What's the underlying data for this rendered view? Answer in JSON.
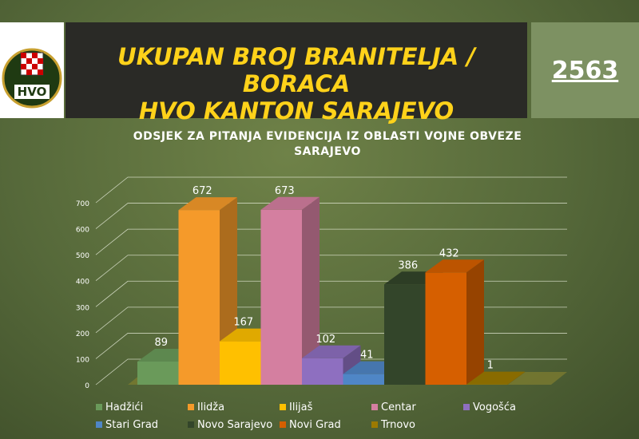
{
  "header": {
    "logo": "HVO",
    "title_line1": "UKUPAN BROJ BRANITELJA / BORACA",
    "title_line2": "HVO KANTON SARAJEVO",
    "total": "2563"
  },
  "chart_data": {
    "type": "bar3d",
    "title": "ODSJEK ZA PITANJA EVIDENCIJA IZ OBLASTI VOJNE OBVEZE SARAJEVO",
    "categories": [
      "Hadžići",
      "Ilidža",
      "Ilijaš",
      "Centar",
      "Vogošća",
      "Stari Grad",
      "Novo Sarajevo",
      "Novi Grad",
      "Trnovo"
    ],
    "values": [
      89,
      672,
      167,
      673,
      102,
      41,
      386,
      432,
      1
    ],
    "colors": [
      "#6a9a5a",
      "#f59a2a",
      "#ffc000",
      "#d47fa0",
      "#8e6fc0",
      "#4f86c6",
      "#33452a",
      "#d65f00",
      "#9c7a00"
    ],
    "ylim": [
      0,
      700
    ],
    "yticks": [
      0,
      100,
      200,
      300,
      400,
      500,
      600,
      700
    ],
    "grid": true
  }
}
